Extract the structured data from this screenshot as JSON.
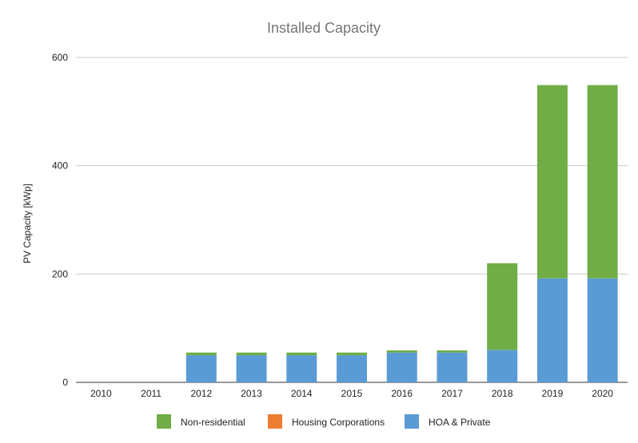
{
  "chart_data": {
    "type": "bar",
    "stacked": true,
    "title": "Installed Capacity",
    "xlabel": "",
    "ylabel": "PV Capacity [kWp]",
    "ylim": [
      0,
      600
    ],
    "yticks": [
      0,
      200,
      400,
      600
    ],
    "grid": true,
    "legend_position": "bottom",
    "categories": [
      "2010",
      "2011",
      "2012",
      "2013",
      "2014",
      "2015",
      "2016",
      "2017",
      "2018",
      "2019",
      "2020"
    ],
    "series": [
      {
        "name": "HOA & Private",
        "color": "#5b9bd5",
        "values": [
          0,
          0,
          50,
          50,
          50,
          50,
          55,
          55,
          60,
          192,
          192
        ]
      },
      {
        "name": "Housing Corporations",
        "color": "#ed7d31",
        "values": [
          0,
          0,
          0,
          0,
          0,
          0,
          0,
          0,
          0,
          0,
          0
        ]
      },
      {
        "name": "Non-residential",
        "color": "#70ad47",
        "values": [
          0,
          0,
          5,
          5,
          5,
          5,
          4,
          4,
          160,
          357,
          357
        ]
      }
    ],
    "legend_order": [
      "Non-residential",
      "Housing Corporations",
      "HOA & Private"
    ]
  }
}
